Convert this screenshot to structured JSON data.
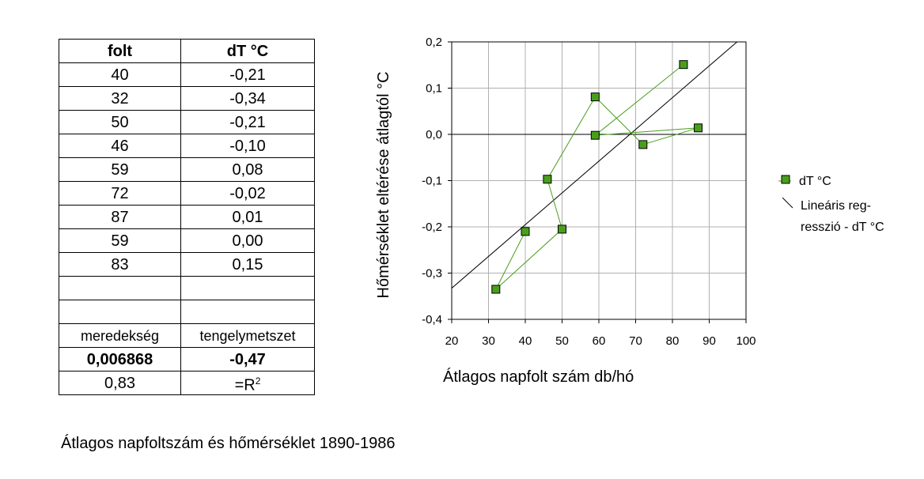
{
  "table": {
    "header": [
      "folt",
      "dT °C"
    ],
    "rows": [
      [
        "40",
        "-0,21"
      ],
      [
        "32",
        "-0,34"
      ],
      [
        "50",
        "-0,21"
      ],
      [
        "46",
        "-0,10"
      ],
      [
        "59",
        "0,08"
      ],
      [
        "72",
        "-0,02"
      ],
      [
        "87",
        "0,01"
      ],
      [
        "59",
        "0,00"
      ],
      [
        "83",
        "0,15"
      ],
      [
        "",
        ""
      ],
      [
        "",
        ""
      ]
    ],
    "regression_labels": [
      "meredekség",
      "tengelymetszet"
    ],
    "regression_values": [
      "0,006868",
      "-0,47"
    ],
    "r2_value": "0,83",
    "r2_label_prefix": "=R",
    "r2_label_sup": "2"
  },
  "caption": "Átlagos napfoltszám és hőmérséklet 1890-1986",
  "chart_data": {
    "type": "scatter",
    "xlabel": "Átlagos napfolt szám db/hó",
    "ylabel": "Hőmérséklet eltérése átlagtól °C",
    "xlim": [
      20,
      100
    ],
    "ylim": [
      -0.4,
      0.2
    ],
    "x_ticks": [
      "20",
      "30",
      "40",
      "50",
      "60",
      "70",
      "80",
      "90",
      "100"
    ],
    "y_ticks": [
      "0,2",
      "0,1",
      "0,0",
      "-0,1",
      "-0,2",
      "-0,3",
      "-0,4"
    ],
    "grid": true,
    "legend_position": "right",
    "series": [
      {
        "name": "dT °C",
        "color": "#4a9e1e",
        "x": [
          40,
          32,
          50,
          46,
          59,
          72,
          87,
          59,
          83
        ],
        "y": [
          -0.21,
          -0.335,
          -0.205,
          -0.097,
          0.081,
          -0.022,
          0.014,
          -0.002,
          0.151
        ]
      }
    ],
    "regression": {
      "name_line1": "Lineáris reg-",
      "name_line2": "resszió - dT °C",
      "slope": 0.006868,
      "intercept": -0.47,
      "color": "#000000"
    }
  }
}
